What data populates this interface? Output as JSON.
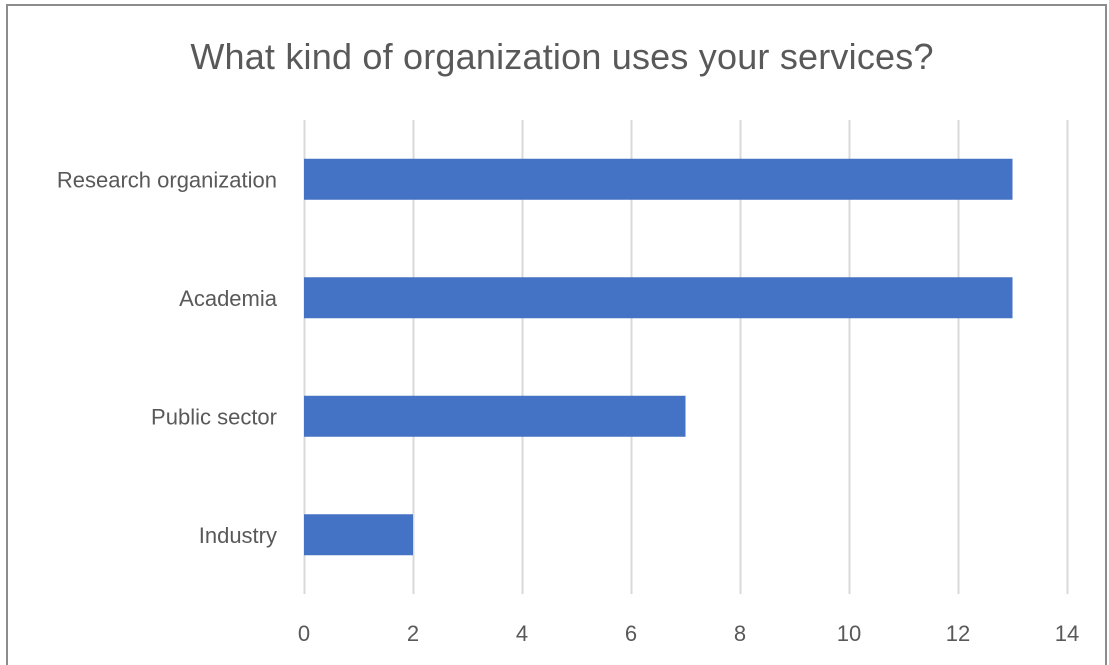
{
  "chart_data": {
    "type": "bar",
    "orientation": "horizontal",
    "title": "What kind of organization uses your services?",
    "xlabel": "",
    "ylabel": "",
    "categories": [
      "Research organization",
      "Academia",
      "Public sector",
      "Industry"
    ],
    "values": [
      13,
      13,
      7,
      2
    ],
    "xlim": [
      0,
      14
    ],
    "xticks": [
      0,
      2,
      4,
      6,
      8,
      10,
      12,
      14
    ],
    "grid": true,
    "legend": "none",
    "bar_color": "#4472c4",
    "grid_color": "#d9d9d9",
    "text_color": "#595959"
  }
}
